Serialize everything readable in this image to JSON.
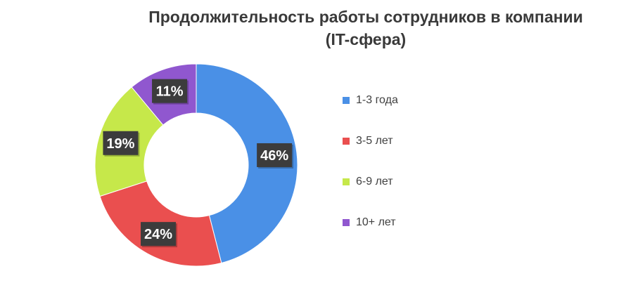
{
  "chart_data": {
    "type": "pie",
    "style": "doughnut",
    "title": "Продолжительность работы сотрудников в компании",
    "subtitle": "(IT-сфера)",
    "categories": [
      "1-3 года",
      "3-5 лет",
      "6-9 лет",
      "10+ лет"
    ],
    "values": [
      46,
      24,
      19,
      11
    ],
    "value_labels": [
      "46%",
      "24%",
      "19%",
      "11%"
    ],
    "unit": "%",
    "colors": [
      "#4A90E6",
      "#EA4F4F",
      "#C6E84A",
      "#9057CF"
    ],
    "legend_position": "right",
    "start_angle": "top",
    "direction": "clockwise",
    "data_label_style": "dark box, white bold text"
  }
}
